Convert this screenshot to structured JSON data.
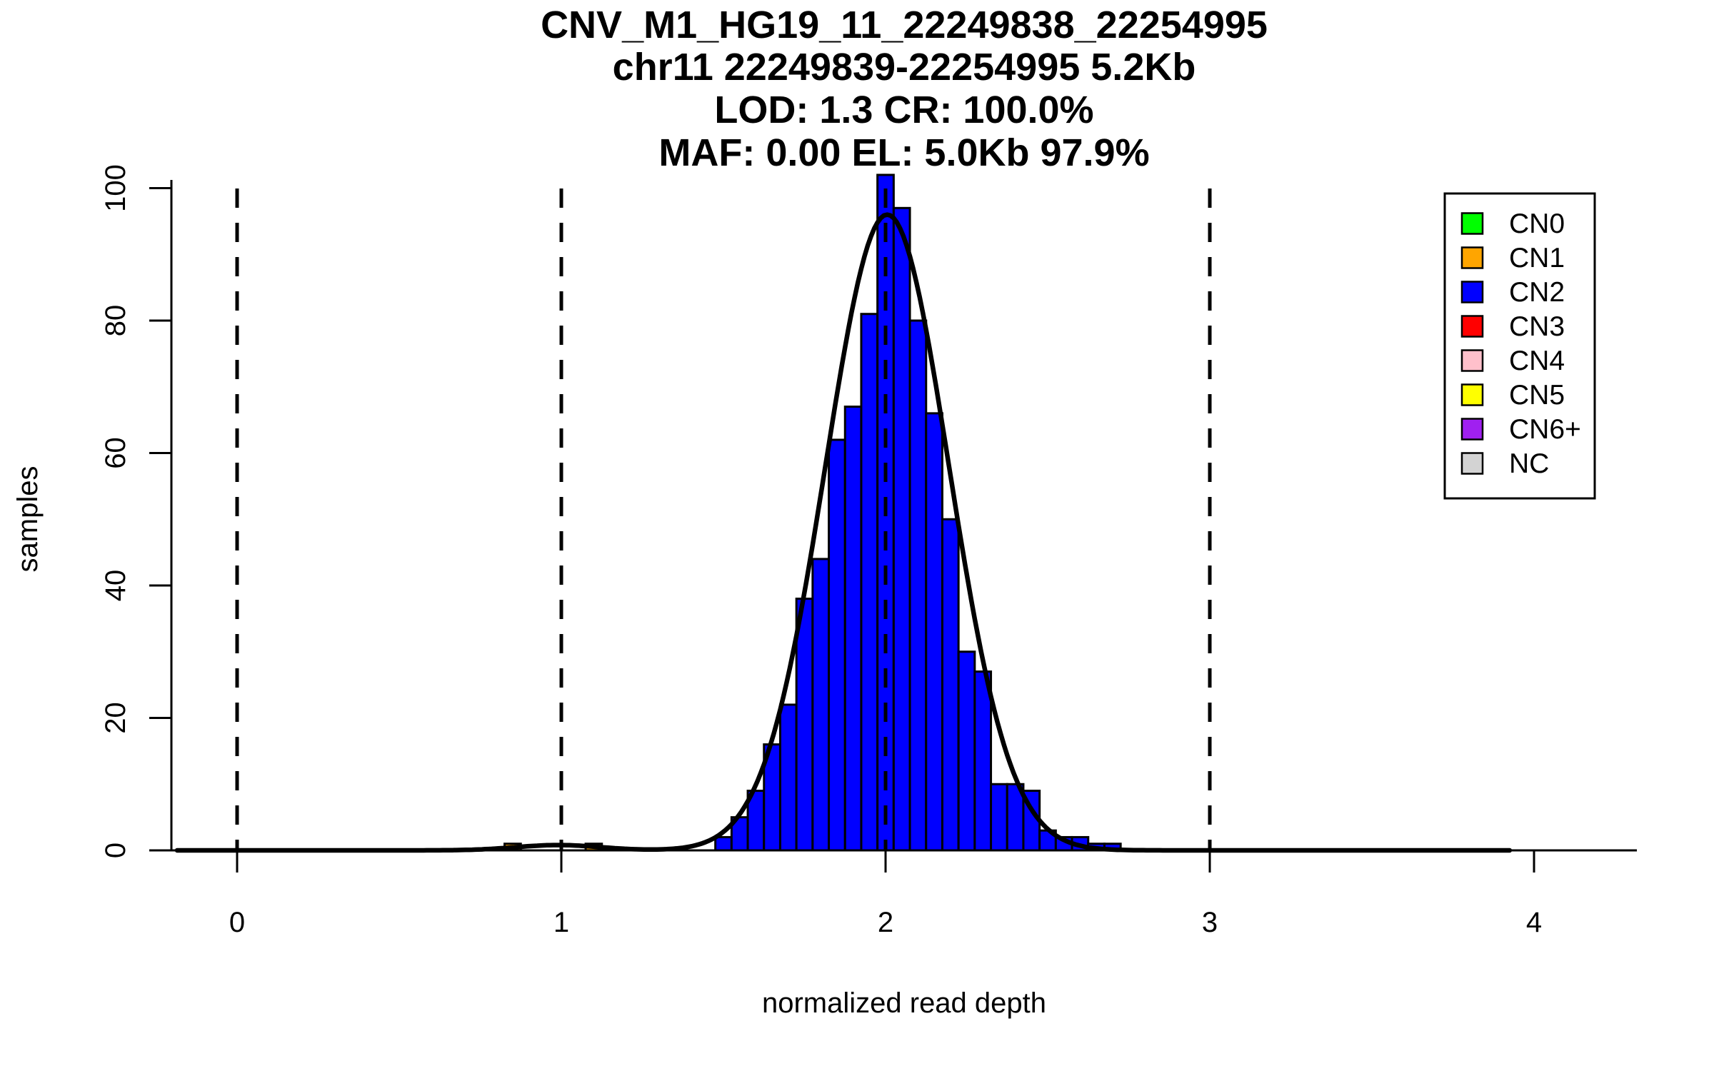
{
  "title": {
    "line1": "CNV_M1_HG19_11_22249838_22254995",
    "line2": "chr11 22249839-22254995 5.2Kb",
    "line3": "LOD: 1.3 CR: 100.0%",
    "line4": "MAF: 0.00 EL: 5.0Kb 97.9%"
  },
  "axes": {
    "x_label": "normalized read depth",
    "y_label": "samples",
    "x_ticks": [
      0,
      1,
      2,
      3,
      4
    ],
    "y_ticks": [
      0,
      20,
      40,
      60,
      80,
      100
    ]
  },
  "legend": {
    "items": [
      {
        "label": "CN0",
        "color": "#00FF00"
      },
      {
        "label": "CN1",
        "color": "#FFA500"
      },
      {
        "label": "CN2",
        "color": "#0000FF"
      },
      {
        "label": "CN3",
        "color": "#FF0000"
      },
      {
        "label": "CN4",
        "color": "#FFC0CB"
      },
      {
        "label": "CN5",
        "color": "#FFFF00"
      },
      {
        "label": "CN6+",
        "color": "#A020F0"
      },
      {
        "label": "NC",
        "color": "#D3D3D3"
      }
    ]
  },
  "chart_data": {
    "type": "bar",
    "title": "CNV_M1_HG19_11_22249838_22254995",
    "xlabel": "normalized read depth",
    "ylabel": "samples",
    "xlim": [
      -0.2,
      4.32
    ],
    "ylim": [
      0,
      100
    ],
    "grid": false,
    "legend_position": "top-right",
    "bin_width": 0.05,
    "bars": [
      {
        "x0": 0.825,
        "count": 1,
        "cn": "CN1"
      },
      {
        "x0": 1.075,
        "count": 1,
        "cn": "CN1"
      },
      {
        "x0": 1.475,
        "count": 2,
        "cn": "CN2"
      },
      {
        "x0": 1.525,
        "count": 5,
        "cn": "CN2"
      },
      {
        "x0": 1.575,
        "count": 9,
        "cn": "CN2"
      },
      {
        "x0": 1.625,
        "count": 16,
        "cn": "CN2"
      },
      {
        "x0": 1.675,
        "count": 22,
        "cn": "CN2"
      },
      {
        "x0": 1.725,
        "count": 38,
        "cn": "CN2"
      },
      {
        "x0": 1.775,
        "count": 44,
        "cn": "CN2"
      },
      {
        "x0": 1.825,
        "count": 62,
        "cn": "CN2"
      },
      {
        "x0": 1.875,
        "count": 67,
        "cn": "CN2"
      },
      {
        "x0": 1.925,
        "count": 81,
        "cn": "CN2"
      },
      {
        "x0": 1.975,
        "count": 102,
        "cn": "CN2"
      },
      {
        "x0": 2.025,
        "count": 97,
        "cn": "CN2"
      },
      {
        "x0": 2.075,
        "count": 80,
        "cn": "CN2"
      },
      {
        "x0": 2.125,
        "count": 66,
        "cn": "CN2"
      },
      {
        "x0": 2.175,
        "count": 50,
        "cn": "CN2"
      },
      {
        "x0": 2.225,
        "count": 30,
        "cn": "CN2"
      },
      {
        "x0": 2.275,
        "count": 27,
        "cn": "CN2"
      },
      {
        "x0": 2.325,
        "count": 10,
        "cn": "CN2"
      },
      {
        "x0": 2.375,
        "count": 10,
        "cn": "CN2"
      },
      {
        "x0": 2.425,
        "count": 9,
        "cn": "CN2"
      },
      {
        "x0": 2.475,
        "count": 3,
        "cn": "CN2"
      },
      {
        "x0": 2.525,
        "count": 2,
        "cn": "CN2"
      },
      {
        "x0": 2.575,
        "count": 2,
        "cn": "CN2"
      },
      {
        "x0": 2.625,
        "count": 1,
        "cn": "CN2"
      },
      {
        "x0": 2.675,
        "count": 1,
        "cn": "CN2"
      }
    ],
    "fit_curve": {
      "color": "#000000",
      "x_range": [
        -0.185,
        3.93
      ],
      "components": [
        {
          "mean": 2.005,
          "sd": 0.19,
          "peak": 96
        },
        {
          "mean": 0.99,
          "sd": 0.13,
          "peak": 0.8
        }
      ]
    },
    "dashed_guides_x": [
      0,
      1,
      2,
      3
    ]
  }
}
